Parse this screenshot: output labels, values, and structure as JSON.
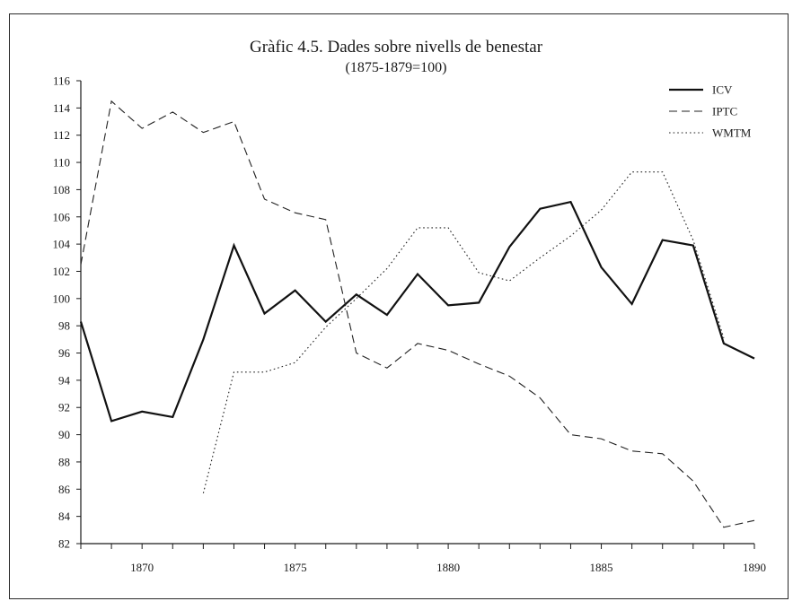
{
  "chart_data": {
    "type": "line",
    "title": "Gràfic 4.5. Dades sobre nivells de benestar",
    "subtitle": "(1875-1879=100)",
    "xlabel": "",
    "ylabel": "",
    "xlim": [
      1868,
      1890
    ],
    "ylim": [
      82,
      116
    ],
    "y_ticks": [
      82,
      84,
      86,
      88,
      90,
      92,
      94,
      96,
      98,
      100,
      102,
      104,
      106,
      108,
      110,
      112,
      114,
      116
    ],
    "x_ticks_minor": [
      1868,
      1869,
      1870,
      1871,
      1872,
      1873,
      1874,
      1875,
      1876,
      1877,
      1878,
      1879,
      1880,
      1881,
      1882,
      1883,
      1884,
      1885,
      1886,
      1887,
      1888,
      1889,
      1890
    ],
    "x_tick_labels": [
      {
        "value": 1870,
        "label": "1870"
      },
      {
        "value": 1875,
        "label": "1875"
      },
      {
        "value": 1880,
        "label": "1880"
      },
      {
        "value": 1885,
        "label": "1885"
      },
      {
        "value": 1890,
        "label": "1890"
      }
    ],
    "grid": false,
    "legend_position": "top-right",
    "series": [
      {
        "name": "ICV",
        "style": "solid",
        "color": "#111111",
        "points": [
          [
            1868,
            98.3
          ],
          [
            1869,
            91.0
          ],
          [
            1870,
            91.7
          ],
          [
            1871,
            91.3
          ],
          [
            1872,
            97.0
          ],
          [
            1873,
            103.9
          ],
          [
            1874,
            98.9
          ],
          [
            1875,
            100.6
          ],
          [
            1876,
            98.3
          ],
          [
            1877,
            100.3
          ],
          [
            1878,
            98.8
          ],
          [
            1879,
            101.8
          ],
          [
            1880,
            99.5
          ],
          [
            1881,
            99.7
          ],
          [
            1882,
            103.8
          ],
          [
            1883,
            106.6
          ],
          [
            1884,
            107.1
          ],
          [
            1885,
            102.3
          ],
          [
            1886,
            99.6
          ],
          [
            1887,
            104.3
          ],
          [
            1888,
            103.9
          ],
          [
            1889,
            96.7
          ],
          [
            1890,
            95.6
          ]
        ]
      },
      {
        "name": "IPTC",
        "style": "dashed",
        "color": "#222222",
        "points": [
          [
            1868,
            102.5
          ],
          [
            1869,
            114.5
          ],
          [
            1870,
            112.5
          ],
          [
            1871,
            113.7
          ],
          [
            1872,
            112.2
          ],
          [
            1873,
            113.0
          ],
          [
            1874,
            107.3
          ],
          [
            1875,
            106.3
          ],
          [
            1876,
            105.8
          ],
          [
            1877,
            96.0
          ],
          [
            1878,
            94.9
          ],
          [
            1879,
            96.7
          ],
          [
            1880,
            96.2
          ],
          [
            1881,
            95.2
          ],
          [
            1882,
            94.3
          ],
          [
            1883,
            92.7
          ],
          [
            1884,
            90.0
          ],
          [
            1885,
            89.7
          ],
          [
            1886,
            88.8
          ],
          [
            1887,
            88.6
          ],
          [
            1888,
            86.6
          ],
          [
            1889,
            83.2
          ],
          [
            1890,
            83.7
          ]
        ]
      },
      {
        "name": "WMTM",
        "style": "dotted",
        "color": "#222222",
        "points": [
          [
            1872,
            85.7
          ],
          [
            1873,
            94.6
          ],
          [
            1874,
            94.6
          ],
          [
            1875,
            95.3
          ],
          [
            1876,
            97.9
          ],
          [
            1877,
            100.0
          ],
          [
            1878,
            102.2
          ],
          [
            1879,
            105.2
          ],
          [
            1880,
            105.2
          ],
          [
            1881,
            101.9
          ],
          [
            1882,
            101.3
          ],
          [
            1883,
            103.0
          ],
          [
            1884,
            104.6
          ],
          [
            1885,
            106.5
          ],
          [
            1886,
            109.3
          ],
          [
            1887,
            109.3
          ],
          [
            1888,
            104.3
          ],
          [
            1889,
            97.1
          ]
        ]
      }
    ]
  }
}
